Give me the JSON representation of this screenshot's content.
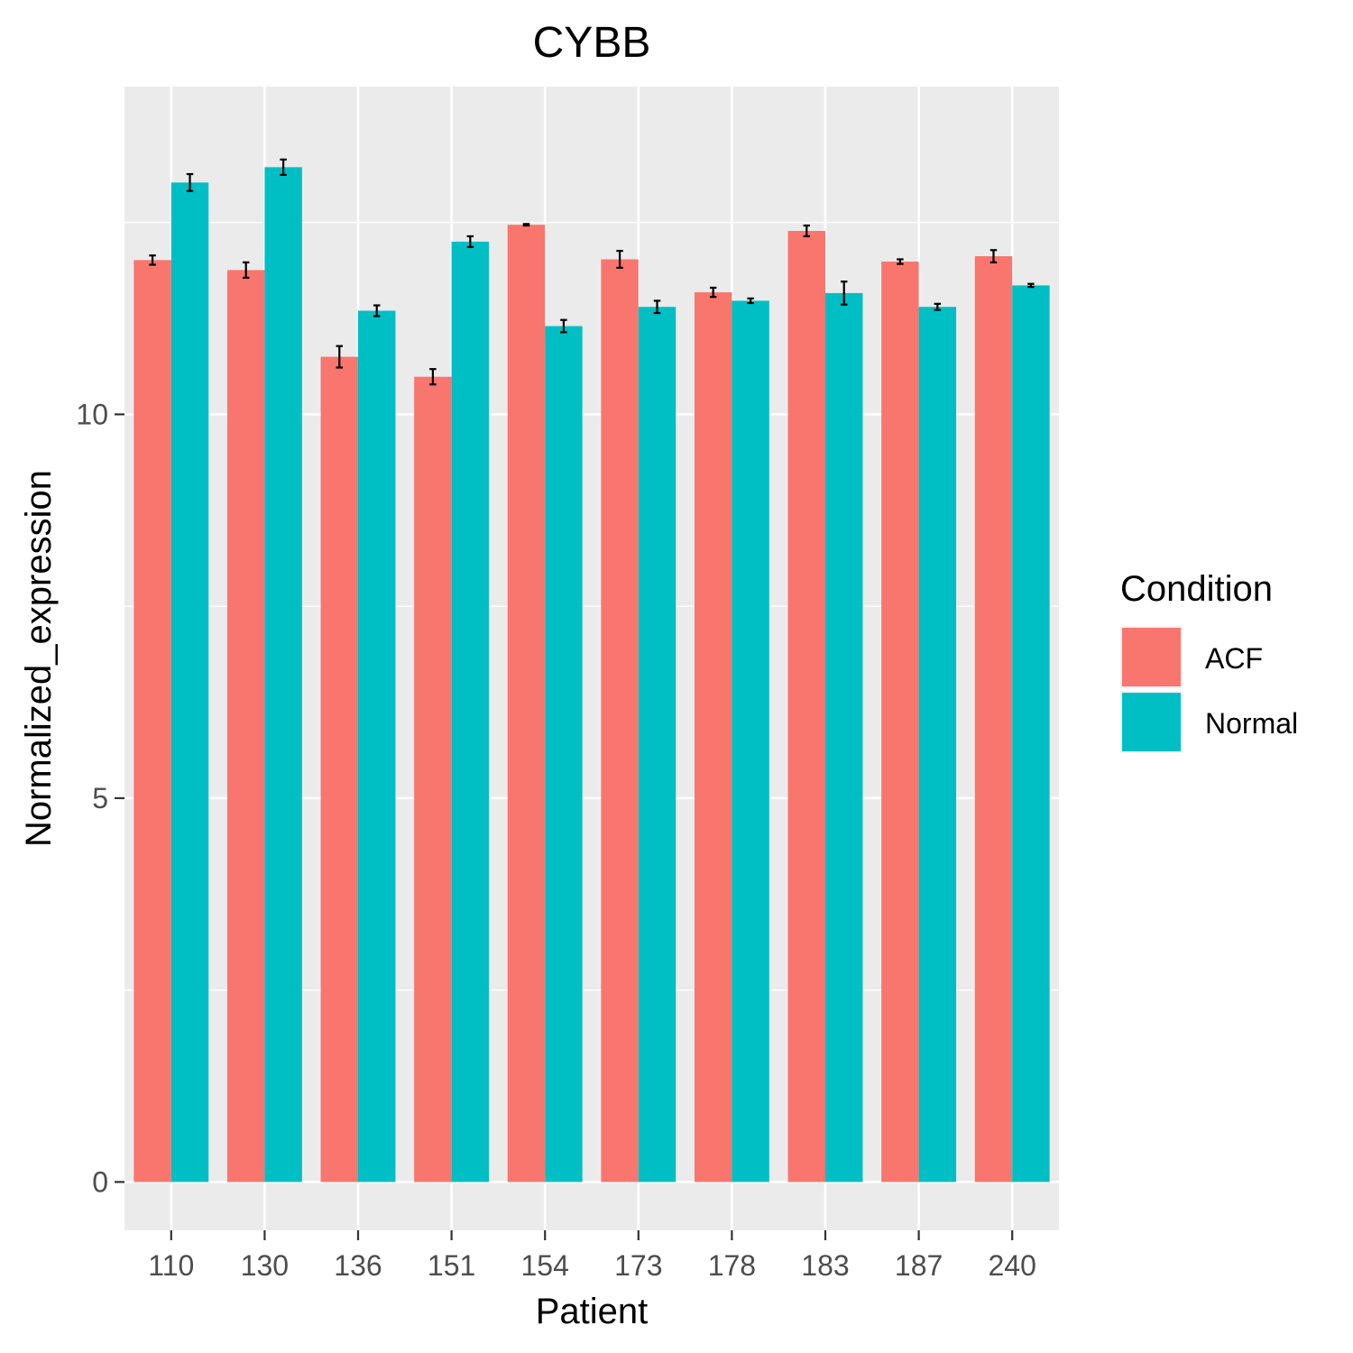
{
  "chart_data": {
    "type": "bar",
    "title": "CYBB",
    "xlabel": "Patient",
    "ylabel": "Normalized_expression",
    "categories": [
      "110",
      "130",
      "136",
      "151",
      "154",
      "173",
      "178",
      "183",
      "187",
      "240"
    ],
    "series": [
      {
        "name": "ACF",
        "color": "#F8766D",
        "values": [
          12.01,
          11.88,
          10.75,
          10.49,
          12.47,
          12.02,
          11.59,
          12.39,
          11.99,
          12.06
        ],
        "error": [
          0.06,
          0.1,
          0.14,
          0.1,
          0.01,
          0.11,
          0.06,
          0.07,
          0.03,
          0.08
        ]
      },
      {
        "name": "Normal",
        "color": "#00BFC4",
        "values": [
          13.02,
          13.22,
          11.35,
          12.25,
          11.15,
          11.4,
          11.48,
          11.58,
          11.4,
          11.68
        ],
        "error": [
          0.11,
          0.1,
          0.07,
          0.07,
          0.08,
          0.08,
          0.03,
          0.15,
          0.04,
          0.02
        ]
      }
    ],
    "ylim": [
      -0.63,
      14.27
    ],
    "yticks": [
      0,
      5,
      10
    ],
    "legend": {
      "title": "Condition",
      "position": "right"
    },
    "grid": true,
    "panel_background": "#EBEBEB"
  }
}
